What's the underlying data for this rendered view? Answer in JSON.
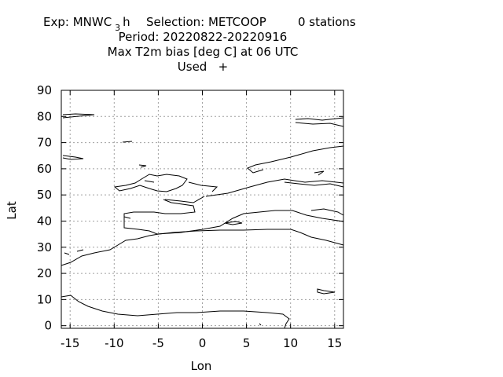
{
  "title": {
    "exp_prefix": "Exp: MNWC",
    "exp_sub": "3",
    "exp_suffix": "h",
    "selection": "Selection: METCOOP",
    "stations": "0 stations",
    "period": "Period: 20220822-20220916",
    "variable": "Max T2m bias [deg C] at  06 UTC",
    "used": "Used   +"
  },
  "chart_data": {
    "type": "scatter",
    "title": "Max T2m bias [deg C] at  06 UTC",
    "xlabel": "Lon",
    "ylabel": "Lat",
    "xlim": [
      -16,
      16
    ],
    "ylim": [
      -1,
      90
    ],
    "xticks": [
      -15,
      -10,
      -5,
      0,
      5,
      10,
      15
    ],
    "xtick_labels": [
      "-15",
      "-10",
      "-5",
      "0",
      "5",
      "10",
      "15"
    ],
    "yticks": [
      0,
      10,
      20,
      30,
      40,
      50,
      60,
      70,
      80,
      90
    ],
    "ytick_labels": [
      "0",
      "10",
      "20",
      "30",
      "40",
      "50",
      "60",
      "70",
      "80",
      "90"
    ],
    "grid": true,
    "series": [
      {
        "values": []
      }
    ],
    "background_map": "coastlines"
  },
  "colors": {
    "axis": "#000000",
    "grid": "#a0a0a0",
    "coastline": "#000000"
  }
}
